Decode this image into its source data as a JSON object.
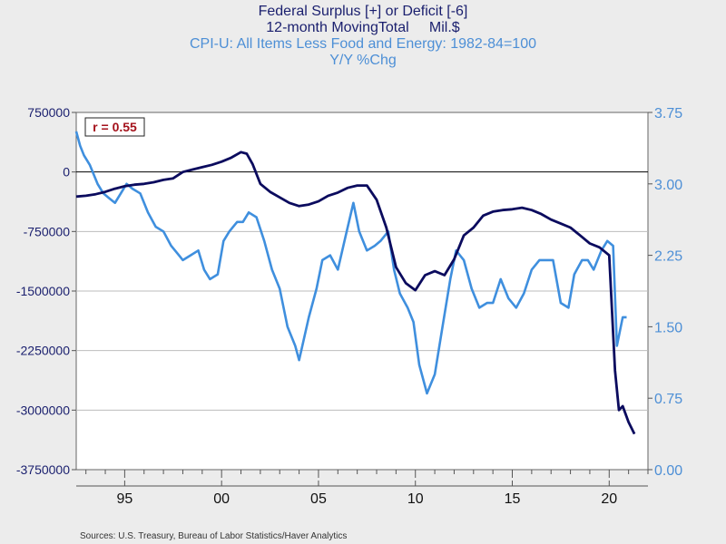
{
  "chart_data": {
    "type": "line",
    "title_lines": [
      "Federal Surplus [+] or Deficit [-6]",
      "12-month MovingTotal     Mil.$"
    ],
    "subtitle_lines": [
      "CPI-U: All Items Less Food and Energy: 1982-84=100",
      "Y/Y %Chg"
    ],
    "annotation": "r = 0.55",
    "source": "Sources:  U.S. Treasury, Bureau of Labor Statistics/Haver Analytics",
    "colors": {
      "left_series": "#0b0b5e",
      "right_series": "#3f8fde",
      "left_axis": "#1a1f6e",
      "right_axis": "#4d8fd6",
      "annotation": "#a4111b"
    },
    "x_axis": {
      "range": [
        1992.5,
        2022.0
      ],
      "ticks": [
        1995,
        2000,
        2005,
        2010,
        2015,
        2020
      ],
      "tick_labels": [
        "95",
        "00",
        "05",
        "10",
        "15",
        "20"
      ]
    },
    "y_left": {
      "range": [
        -3750000,
        750000
      ],
      "ticks": [
        750000,
        0,
        -750000,
        -1500000,
        -2250000,
        -3000000,
        -3750000
      ],
      "tick_labels": [
        "750000",
        "0",
        "-750000",
        "-1500000",
        "-2250000",
        "-3000000",
        "-3750000"
      ]
    },
    "y_right": {
      "range": [
        0.0,
        3.75
      ],
      "ticks": [
        3.75,
        3.0,
        2.25,
        1.5,
        0.75,
        0.0
      ],
      "tick_labels": [
        "3.75",
        "3.00",
        "2.25",
        "1.50",
        "0.75",
        "0.00"
      ]
    },
    "series": [
      {
        "name": "Federal Surplus or Deficit, 12-month moving total (Mil.$)",
        "axis": "left",
        "x": [
          1992.5,
          1993.0,
          1993.5,
          1994.0,
          1994.5,
          1995.0,
          1995.5,
          1996.0,
          1996.5,
          1997.0,
          1997.5,
          1998.0,
          1998.5,
          1999.0,
          1999.5,
          2000.0,
          2000.5,
          2001.0,
          2001.3,
          2001.6,
          2002.0,
          2002.5,
          2003.0,
          2003.5,
          2004.0,
          2004.5,
          2005.0,
          2005.5,
          2006.0,
          2006.5,
          2007.0,
          2007.5,
          2008.0,
          2008.5,
          2009.0,
          2009.5,
          2010.0,
          2010.5,
          2011.0,
          2011.5,
          2012.0,
          2012.5,
          2013.0,
          2013.5,
          2014.0,
          2014.5,
          2015.0,
          2015.5,
          2016.0,
          2016.5,
          2017.0,
          2017.5,
          2018.0,
          2018.5,
          2019.0,
          2019.5,
          2020.0,
          2020.3,
          2020.5,
          2020.7,
          2021.0,
          2021.3
        ],
        "values": [
          -310000,
          -300000,
          -280000,
          -250000,
          -210000,
          -180000,
          -160000,
          -150000,
          -130000,
          -100000,
          -80000,
          0,
          30000,
          60000,
          90000,
          130000,
          180000,
          250000,
          230000,
          100000,
          -150000,
          -250000,
          -320000,
          -390000,
          -430000,
          -410000,
          -370000,
          -300000,
          -260000,
          -200000,
          -170000,
          -170000,
          -350000,
          -700000,
          -1200000,
          -1400000,
          -1490000,
          -1300000,
          -1250000,
          -1300000,
          -1100000,
          -800000,
          -700000,
          -550000,
          -500000,
          -480000,
          -470000,
          -450000,
          -480000,
          -530000,
          -600000,
          -650000,
          -700000,
          -800000,
          -900000,
          -950000,
          -1050000,
          -2500000,
          -3000000,
          -2950000,
          -3150000,
          -3300000
        ]
      },
      {
        "name": "CPI-U: All Items Less Food and Energy, Y/Y %Chg",
        "axis": "right",
        "x": [
          1992.5,
          1992.7,
          1992.9,
          1993.2,
          1993.6,
          1993.9,
          1994.2,
          1994.5,
          1994.8,
          1995.1,
          1995.4,
          1995.8,
          1996.2,
          1996.6,
          1997.0,
          1997.4,
          1997.8,
          1998.0,
          1998.4,
          1998.8,
          1999.1,
          1999.4,
          1999.8,
          2000.1,
          2000.4,
          2000.8,
          2001.1,
          2001.4,
          2001.8,
          2002.2,
          2002.6,
          2003.0,
          2003.4,
          2003.8,
          2004.0,
          2004.5,
          2004.9,
          2005.2,
          2005.6,
          2006.0,
          2006.4,
          2006.8,
          2007.1,
          2007.5,
          2007.9,
          2008.2,
          2008.6,
          2008.9,
          2009.2,
          2009.6,
          2009.9,
          2010.2,
          2010.6,
          2011.0,
          2011.4,
          2011.8,
          2012.1,
          2012.5,
          2012.9,
          2013.3,
          2013.7,
          2014.0,
          2014.4,
          2014.8,
          2015.2,
          2015.6,
          2016.0,
          2016.4,
          2016.8,
          2017.1,
          2017.5,
          2017.9,
          2018.2,
          2018.6,
          2018.9,
          2019.2,
          2019.6,
          2019.9,
          2020.2,
          2020.4,
          2020.7,
          2020.9
        ],
        "values": [
          3.55,
          3.4,
          3.3,
          3.2,
          3.0,
          2.9,
          2.85,
          2.8,
          2.9,
          3.0,
          2.95,
          2.9,
          2.7,
          2.55,
          2.5,
          2.35,
          2.25,
          2.2,
          2.25,
          2.3,
          2.1,
          2.0,
          2.05,
          2.4,
          2.5,
          2.6,
          2.6,
          2.7,
          2.65,
          2.4,
          2.1,
          1.9,
          1.5,
          1.3,
          1.15,
          1.6,
          1.9,
          2.2,
          2.25,
          2.1,
          2.45,
          2.8,
          2.5,
          2.3,
          2.35,
          2.4,
          2.5,
          2.1,
          1.85,
          1.7,
          1.55,
          1.1,
          0.8,
          1.0,
          1.5,
          2.0,
          2.3,
          2.2,
          1.9,
          1.7,
          1.75,
          1.75,
          2.0,
          1.8,
          1.7,
          1.85,
          2.1,
          2.2,
          2.2,
          2.2,
          1.75,
          1.7,
          2.05,
          2.2,
          2.2,
          2.1,
          2.3,
          2.4,
          2.35,
          1.3,
          1.6,
          1.6
        ]
      }
    ]
  }
}
